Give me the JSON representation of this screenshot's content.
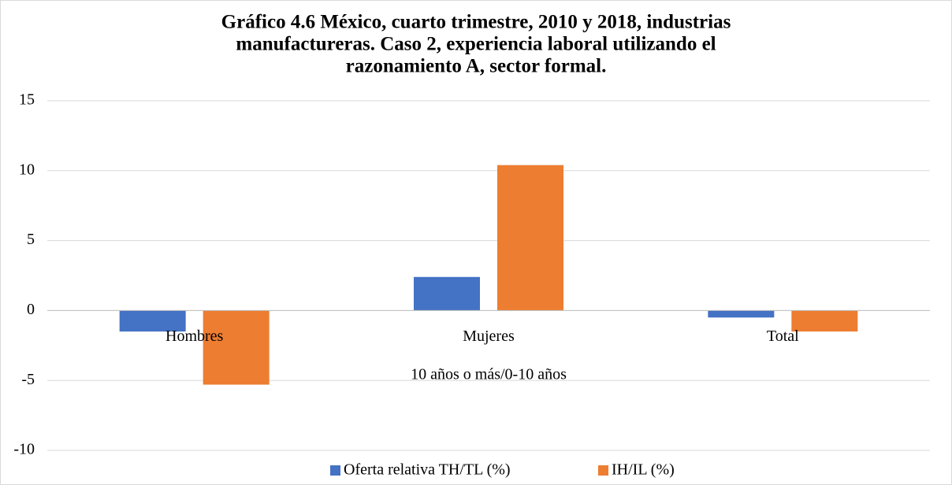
{
  "chart_data": {
    "type": "bar",
    "title": [
      "Gráfico 4.6 México, cuarto trimestre, 2010 y 2018, industrias",
      "manufactureras. Caso 2, experiencia laboral utilizando el",
      "razonamiento A, sector formal."
    ],
    "x_label": "10 años o más/0-10 años",
    "categories": [
      "Hombres",
      "Mujeres",
      "Total"
    ],
    "series": [
      {
        "name": "Oferta relativa TH/TL (%)",
        "color": "#4472c4",
        "values": [
          -1.5,
          2.4,
          -0.5
        ]
      },
      {
        "name": "IH/IL (%)",
        "color": "#ed7d31",
        "values": [
          -5.3,
          10.4,
          -1.5
        ]
      }
    ],
    "ylim": [
      -10,
      15
    ],
    "yticks": [
      -10,
      -5,
      0,
      5,
      10,
      15
    ],
    "grid": true,
    "legend": "bottom"
  }
}
